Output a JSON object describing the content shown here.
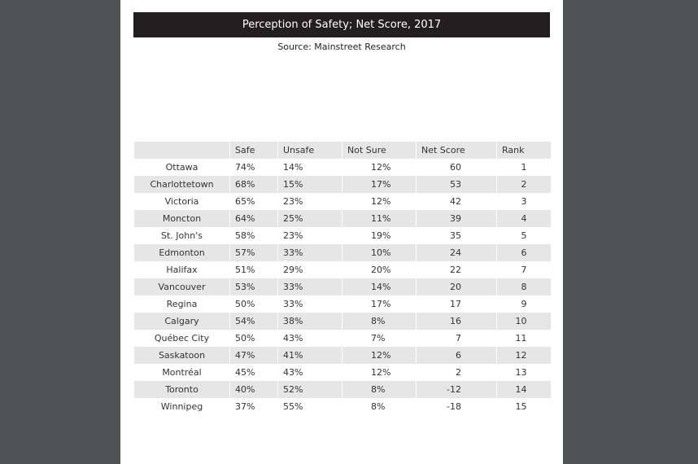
{
  "header": {
    "title": "Perception of Safety; Net Score, 2017",
    "source": "Source: Mainstreet Research"
  },
  "table": {
    "columns": [
      "",
      "Safe",
      "Unsafe",
      "Not Sure",
      "Net Score",
      "Rank"
    ],
    "rows": [
      [
        "Ottawa",
        "74%",
        "14%",
        "12%",
        "60",
        "1"
      ],
      [
        "Charlottetown",
        "68%",
        "15%",
        "17%",
        "53",
        "2"
      ],
      [
        "Victoria",
        "65%",
        "23%",
        "12%",
        "42",
        "3"
      ],
      [
        "Moncton",
        "64%",
        "25%",
        "11%",
        "39",
        "4"
      ],
      [
        "St. John's",
        "58%",
        "23%",
        "19%",
        "35",
        "5"
      ],
      [
        "Edmonton",
        "57%",
        "33%",
        "10%",
        "24",
        "6"
      ],
      [
        "Halifax",
        "51%",
        "29%",
        "20%",
        "22",
        "7"
      ],
      [
        "Vancouver",
        "53%",
        "33%",
        "14%",
        "20",
        "8"
      ],
      [
        "Regina",
        "50%",
        "33%",
        "17%",
        "17",
        "9"
      ],
      [
        "Calgary",
        "54%",
        "38%",
        "8%",
        "16",
        "10"
      ],
      [
        "Québec City",
        "50%",
        "43%",
        "7%",
        "7",
        "11"
      ],
      [
        "Saskatoon",
        "47%",
        "41%",
        "12%",
        "6",
        "12"
      ],
      [
        "Montréal",
        "45%",
        "43%",
        "12%",
        "2",
        "13"
      ],
      [
        "Toronto",
        "40%",
        "52%",
        "8%",
        "-12",
        "14"
      ],
      [
        "Winnipeg",
        "37%",
        "55%",
        "8%",
        "-18",
        "15"
      ]
    ]
  }
}
